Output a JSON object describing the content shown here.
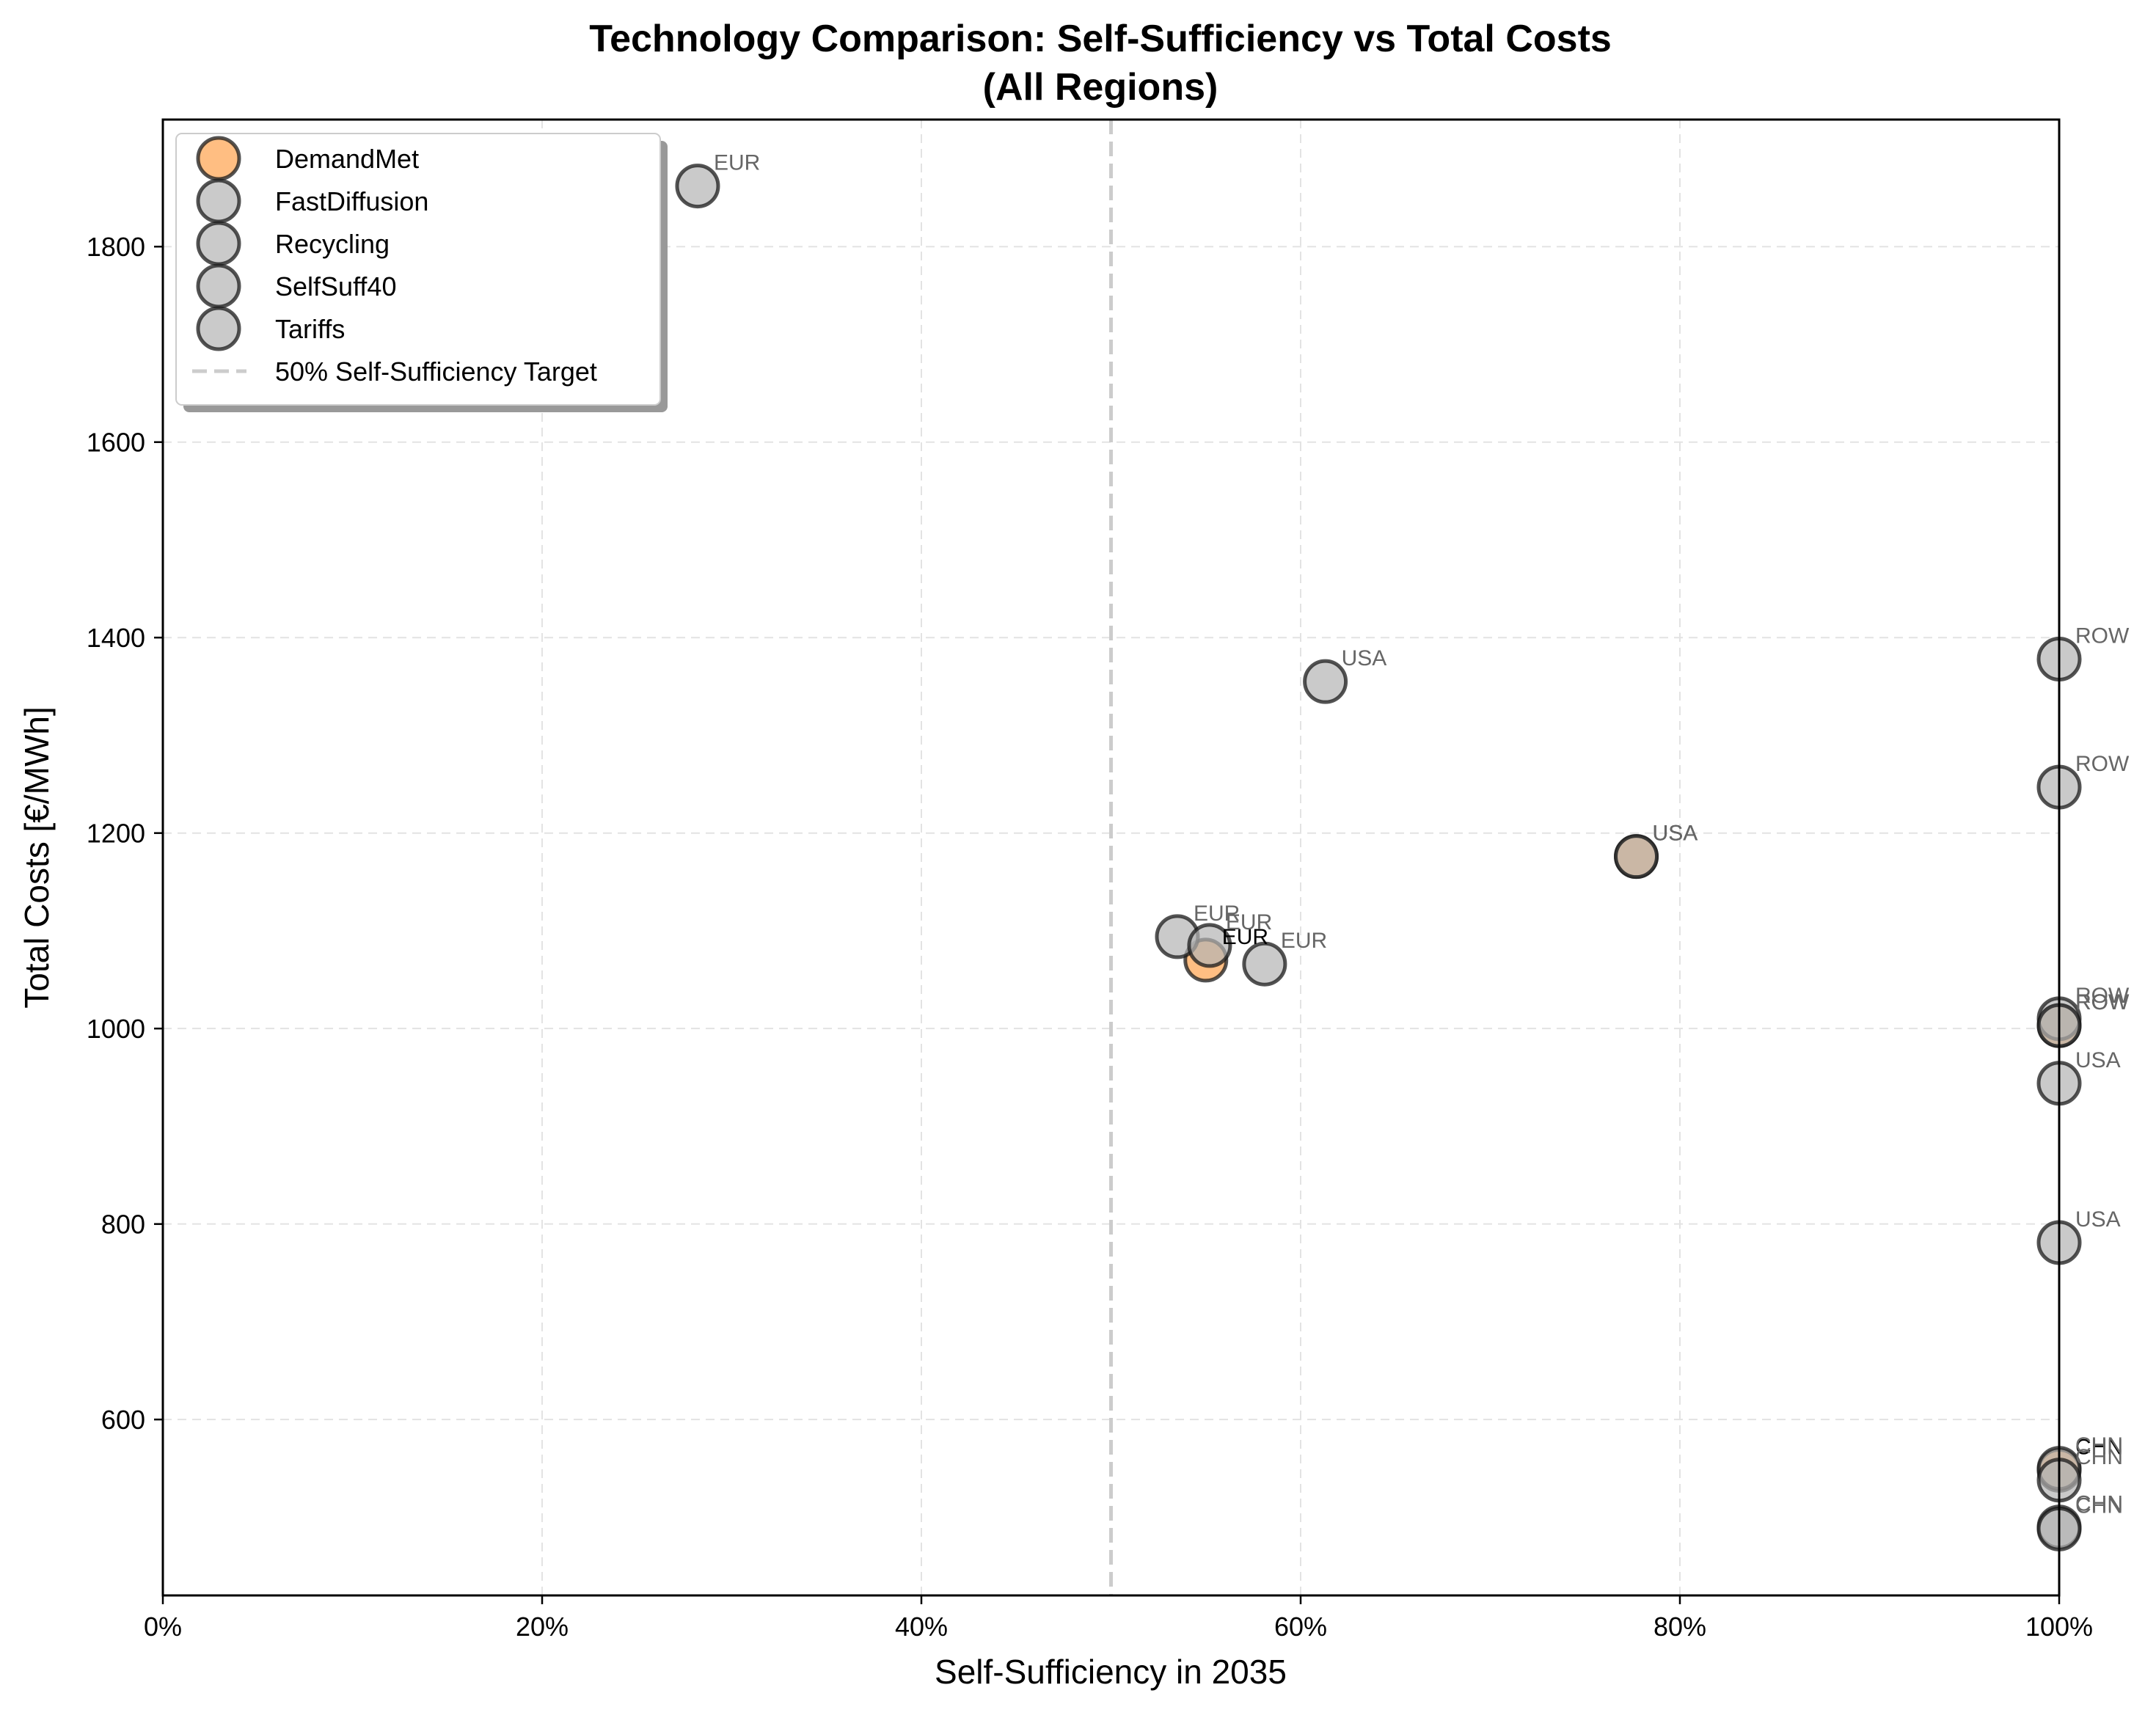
{
  "chart_data": {
    "type": "scatter",
    "title": "Technology Comparison: Self-Sufficiency vs Total Costs",
    "subtitle": "(All Regions)",
    "xlabel": "Self-Sufficiency in 2035",
    "ylabel": "Total Costs [€/MWh]",
    "xlim": [
      0,
      100
    ],
    "ylim": [
      420,
      1930
    ],
    "x_ticks": [
      0,
      20,
      40,
      60,
      80,
      100
    ],
    "x_tick_labels": [
      "0%",
      "20%",
      "40%",
      "60%",
      "80%",
      "100%"
    ],
    "y_ticks": [
      600,
      800,
      1000,
      1200,
      1400,
      1600,
      1800
    ],
    "y_tick_labels": [
      "600",
      "800",
      "1000",
      "1200",
      "1400",
      "1600",
      "1800"
    ],
    "grid": true,
    "legend_position": "top-left",
    "reference_line": {
      "x": 50,
      "label": "50% Self-Sufficiency Target",
      "color": "#cccccc",
      "style": "dashed"
    },
    "series": [
      {
        "name": "DemandMet",
        "color": "#ffa24d",
        "points": [
          {
            "x": 55.0,
            "y": 1070,
            "label": "EUR"
          },
          {
            "x": 77.7,
            "y": 1176,
            "label": "USA"
          },
          {
            "x": 100,
            "y": 1003,
            "label": "ROW"
          },
          {
            "x": 100,
            "y": 548,
            "label": "CHN"
          }
        ]
      },
      {
        "name": "FastDiffusion",
        "color": "#b3b3b3",
        "points": [
          {
            "x": 28.2,
            "y": 1862,
            "label": "EUR"
          },
          {
            "x": 61.3,
            "y": 1355,
            "label": "USA"
          },
          {
            "x": 100,
            "y": 1378,
            "label": "ROW"
          },
          {
            "x": 100,
            "y": 490,
            "label": "CHN"
          }
        ]
      },
      {
        "name": "Recycling",
        "color": "#b3b3b3",
        "points": [
          {
            "x": 53.5,
            "y": 1094,
            "label": "EUR"
          },
          {
            "x": 77.7,
            "y": 1176,
            "label": "USA"
          },
          {
            "x": 100,
            "y": 1010,
            "label": "ROW"
          },
          {
            "x": 100,
            "y": 550,
            "label": "CHN"
          }
        ]
      },
      {
        "name": "SelfSuff40",
        "color": "#b3b3b3",
        "points": [
          {
            "x": 58.1,
            "y": 1066,
            "label": "EUR"
          },
          {
            "x": 100,
            "y": 944,
            "label": "USA"
          },
          {
            "x": 100,
            "y": 1247,
            "label": "ROW"
          },
          {
            "x": 100,
            "y": 538,
            "label": "CHN"
          }
        ]
      },
      {
        "name": "Tariffs",
        "color": "#b3b3b3",
        "points": [
          {
            "x": 55.2,
            "y": 1085,
            "label": "EUR"
          },
          {
            "x": 100,
            "y": 781,
            "label": "USA"
          },
          {
            "x": 100,
            "y": 1003,
            "label": "ROW"
          },
          {
            "x": 100,
            "y": 488,
            "label": "CHN"
          }
        ]
      }
    ]
  }
}
